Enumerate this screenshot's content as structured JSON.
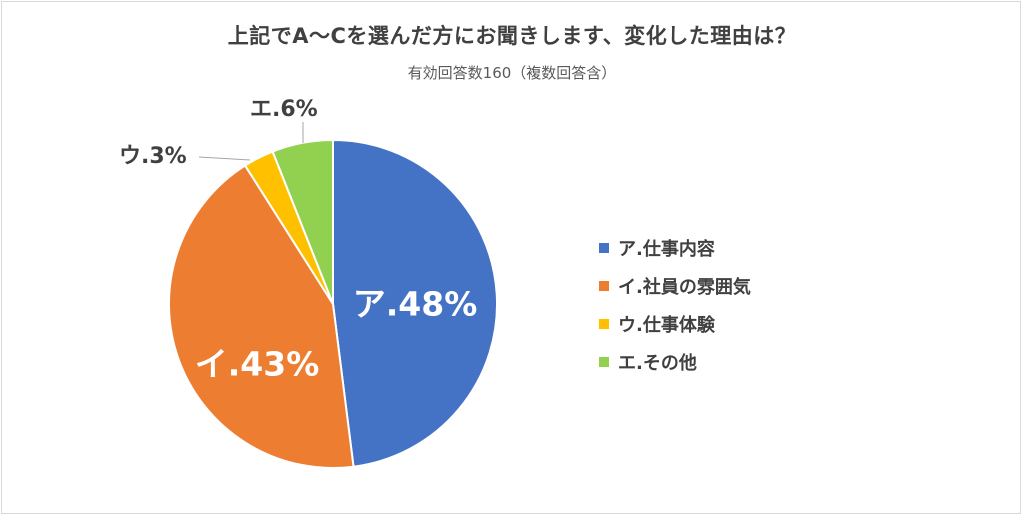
{
  "chart_data": {
    "type": "pie",
    "title": "上記でA～Cを選んだ方にお聞きします、変化した理由は？",
    "subtitle": "有効回答数160（複数回答含）",
    "slices": [
      {
        "legend": "ア.仕事内容",
        "label": "ア.48%",
        "value": 48,
        "color": "#4472C4"
      },
      {
        "legend": "イ.社員の雰囲気",
        "label": "イ.43%",
        "value": 43,
        "color": "#ED7D31"
      },
      {
        "legend": "ウ.仕事体験",
        "label": "ウ.3%",
        "value": 3,
        "color": "#FFC000"
      },
      {
        "legend": "エ.その他",
        "label": "エ.6%",
        "value": 6,
        "color": "#92D050"
      }
    ],
    "legend_position": "right"
  }
}
